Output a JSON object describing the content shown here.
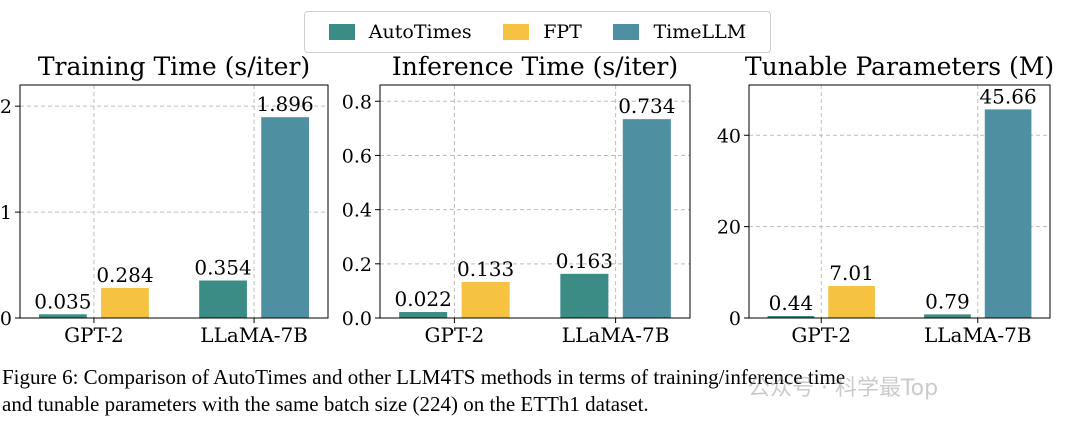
{
  "colors": {
    "AutoTimes": "#3a8c84",
    "FPT": "#f5c242",
    "TimeLLM": "#4e8fa1"
  },
  "legend": [
    {
      "label": "AutoTimes",
      "color": "#3a8c84"
    },
    {
      "label": "FPT",
      "color": "#f5c242"
    },
    {
      "label": "TimeLLM",
      "color": "#4e8fa1"
    }
  ],
  "chart_data": [
    {
      "type": "bar",
      "title": "Training Time (s/iter)",
      "categories": [
        "GPT-2",
        "LLaMA-7B"
      ],
      "series": [
        {
          "name": "AutoTimes",
          "values": [
            0.035,
            0.354
          ],
          "labels": [
            "0.035",
            "0.354"
          ]
        },
        {
          "name": "FPT",
          "values": [
            0.284,
            null
          ],
          "labels": [
            "0.284",
            ""
          ]
        },
        {
          "name": "TimeLLM",
          "values": [
            null,
            1.896
          ],
          "labels": [
            "",
            "1.896"
          ]
        }
      ],
      "ylim": [
        0,
        2.2
      ],
      "yticks": [
        0,
        1,
        2
      ],
      "ytick_labels": [
        "0",
        "1",
        "2"
      ],
      "grid": true
    },
    {
      "type": "bar",
      "title": "Inference Time (s/iter)",
      "categories": [
        "GPT-2",
        "LLaMA-7B"
      ],
      "series": [
        {
          "name": "AutoTimes",
          "values": [
            0.022,
            0.163
          ],
          "labels": [
            "0.022",
            "0.163"
          ]
        },
        {
          "name": "FPT",
          "values": [
            0.133,
            null
          ],
          "labels": [
            "0.133",
            ""
          ]
        },
        {
          "name": "TimeLLM",
          "values": [
            null,
            0.734
          ],
          "labels": [
            "",
            "0.734"
          ]
        }
      ],
      "ylim": [
        0,
        0.86
      ],
      "yticks": [
        0,
        0.2,
        0.4,
        0.6,
        0.8
      ],
      "ytick_labels": [
        "0.0",
        "0.2",
        "0.4",
        "0.6",
        "0.8"
      ],
      "grid": true
    },
    {
      "type": "bar",
      "title": "Tunable Parameters (M)",
      "categories": [
        "GPT-2",
        "LLaMA-7B"
      ],
      "series": [
        {
          "name": "AutoTimes",
          "values": [
            0.44,
            0.79
          ],
          "labels": [
            "0.44",
            "0.79"
          ]
        },
        {
          "name": "FPT",
          "values": [
            7.01,
            null
          ],
          "labels": [
            "7.01",
            ""
          ]
        },
        {
          "name": "TimeLLM",
          "values": [
            null,
            45.66
          ],
          "labels": [
            "",
            "45.66"
          ]
        }
      ],
      "ylim": [
        0,
        51
      ],
      "yticks": [
        0,
        20,
        40
      ],
      "ytick_labels": [
        "0",
        "20",
        "40"
      ],
      "grid": true
    }
  ],
  "caption": {
    "line1": "Figure 6: Comparison of AutoTimes and other LLM4TS methods in terms of training/inference time",
    "line2": "and tunable parameters with the same batch size (224) on the ETTh1 dataset."
  },
  "watermark": "公众号 · 科学最Top"
}
